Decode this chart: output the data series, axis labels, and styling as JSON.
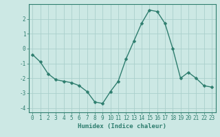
{
  "x": [
    0,
    1,
    2,
    3,
    4,
    5,
    6,
    7,
    8,
    9,
    10,
    11,
    12,
    13,
    14,
    15,
    16,
    17,
    18,
    19,
    20,
    21,
    22,
    23
  ],
  "y": [
    -0.4,
    -0.9,
    -1.7,
    -2.1,
    -2.2,
    -2.3,
    -2.5,
    -2.9,
    -3.6,
    -3.7,
    -2.9,
    -2.2,
    -0.7,
    0.5,
    1.7,
    2.6,
    2.5,
    1.7,
    0.0,
    -2.0,
    -1.6,
    -2.0,
    -2.5,
    -2.6
  ],
  "line_color": "#2e7d6e",
  "marker": "D",
  "marker_size": 2.5,
  "linewidth": 1.0,
  "xlabel": "Humidex (Indice chaleur)",
  "xlim": [
    -0.5,
    23.5
  ],
  "ylim": [
    -4.3,
    3.0
  ],
  "yticks": [
    -4,
    -3,
    -2,
    -1,
    0,
    1,
    2
  ],
  "xticks": [
    0,
    1,
    2,
    3,
    4,
    5,
    6,
    7,
    8,
    9,
    10,
    11,
    12,
    13,
    14,
    15,
    16,
    17,
    18,
    19,
    20,
    21,
    22,
    23
  ],
  "bg_color": "#cce8e4",
  "grid_color": "#aacfcc",
  "tick_color": "#2e7d6e",
  "label_color": "#2e7d6e",
  "axis_color": "#2e7d6e",
  "xlabel_fontsize": 6.5,
  "tick_fontsize": 5.5
}
